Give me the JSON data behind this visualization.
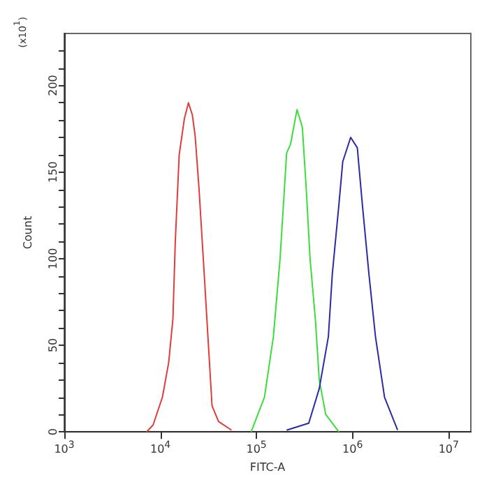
{
  "chart_data": {
    "type": "line",
    "xlabel": "FITC-A",
    "ylabel": "Count",
    "annotations": [
      "(x10$^{1}$)"
    ],
    "log": "x",
    "grid": false,
    "marker": "none",
    "line_style": "solid",
    "xlim": [
      1000,
      17000000
    ],
    "xticks": [
      {
        "value": 1000,
        "label": "10$^{3}$"
      },
      {
        "value": 10000,
        "label": "10$^{4}$"
      },
      {
        "value": 100000,
        "label": "10$^{5}$"
      },
      {
        "value": 1000000,
        "label": "10$^{6}$"
      },
      {
        "value": 10000000,
        "label": "10$^{7}$"
      }
    ],
    "ylim": [
      0,
      230
    ],
    "yticks": [
      0,
      {
        "value": 10,
        "label": null
      },
      {
        "value": 20,
        "label": null
      },
      {
        "value": 30,
        "label": null
      },
      {
        "value": 40,
        "label": null
      },
      50,
      {
        "value": 60,
        "label": null
      },
      {
        "value": 70,
        "label": null
      },
      {
        "value": 80,
        "label": null
      },
      {
        "value": 90,
        "label": null
      },
      100,
      {
        "value": 110,
        "label": null
      },
      {
        "value": 120,
        "label": null
      },
      {
        "value": 130,
        "label": null
      },
      {
        "value": 140,
        "label": null
      },
      150,
      {
        "value": 160,
        "label": null
      },
      {
        "value": 170,
        "label": null
      },
      {
        "value": 180,
        "label": null
      },
      {
        "value": 190,
        "label": null
      },
      200,
      {
        "value": 210,
        "label": null
      },
      {
        "value": 220,
        "label": null
      }
    ],
    "series": [
      {
        "color": "#e03c3c",
        "x": [
          7200,
          8400,
          10500,
          12200,
          13500,
          14300,
          15700,
          17800,
          19600,
          21500,
          23000,
          25200,
          28600,
          31400,
          34500,
          40300,
          55000
        ],
        "values": [
          0,
          4,
          20,
          40,
          65,
          110,
          160,
          181,
          190,
          183,
          171,
          141,
          91,
          53,
          15,
          6,
          1
        ]
      },
      {
        "color": "#3ddc3d",
        "x": [
          88000,
          121000,
          150000,
          176000,
          206000,
          226000,
          264000,
          300000,
          329000,
          361000,
          410000,
          450000,
          526000,
          720000
        ],
        "values": [
          0,
          20,
          55,
          100,
          161,
          166,
          186,
          176,
          141,
          100,
          65,
          30,
          10,
          0
        ]
      },
      {
        "color": "#2a2aa8",
        "x": [
          206000,
          350000,
          450000,
          560000,
          615000,
          720000,
          790000,
          955000,
          1120000,
          1265000,
          1480000,
          1730000,
          2150000,
          2940000
        ],
        "values": [
          1,
          5,
          25,
          55,
          91,
          131,
          156,
          170,
          164,
          131,
          91,
          55,
          20,
          1
        ]
      }
    ]
  }
}
